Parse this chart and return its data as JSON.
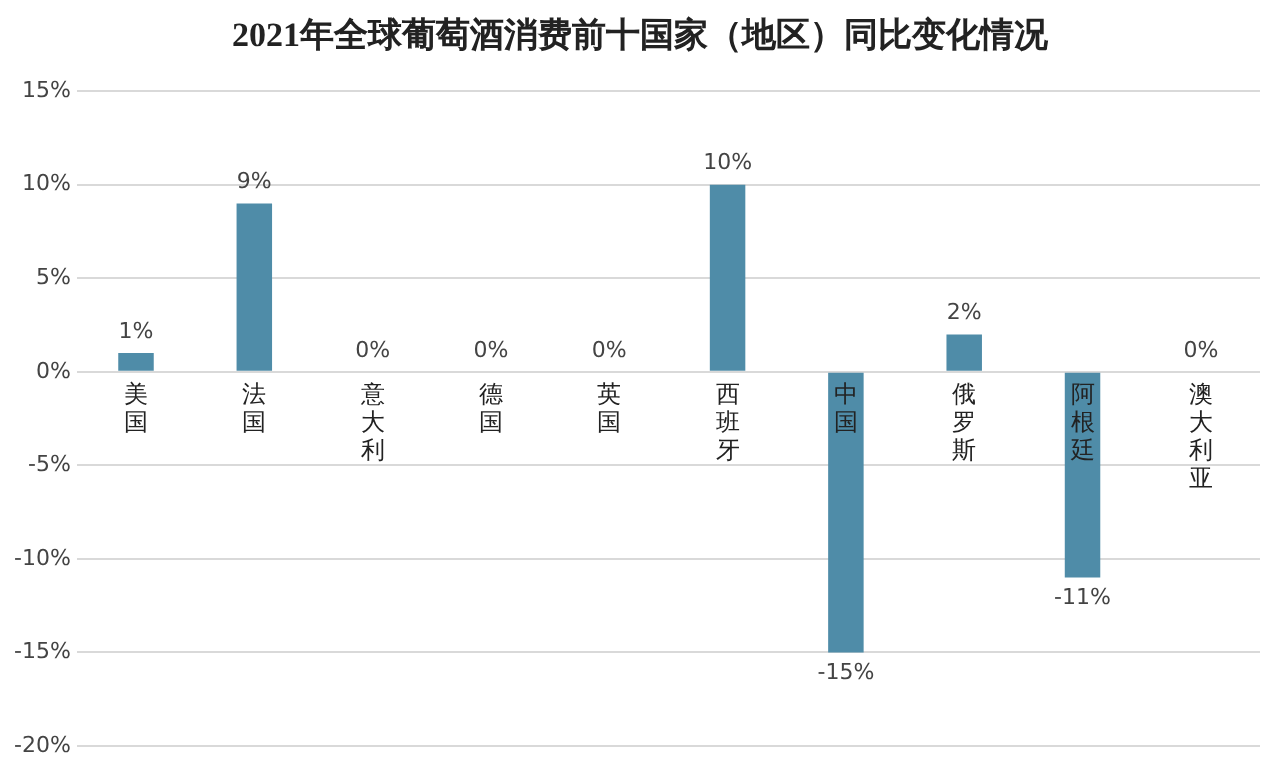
{
  "chart_data": {
    "type": "bar",
    "title": "2021年全球葡萄酒消费前十国家（地区）同比变化情况",
    "categories": [
      "美国",
      "法国",
      "意大利",
      "德国",
      "英国",
      "西班牙",
      "中国",
      "俄罗斯",
      "阿根廷",
      "澳大利亚"
    ],
    "values": [
      1,
      9,
      0,
      0,
      0,
      10,
      -15,
      2,
      -11,
      0
    ],
    "value_labels": [
      "1%",
      "9%",
      "0%",
      "0%",
      "0%",
      "10%",
      "-15%",
      "2%",
      "-11%",
      "0%"
    ],
    "color": "#4f8ca8",
    "ylim": [
      -20,
      15
    ],
    "yticks": [
      {
        "value": -20,
        "label": "-20%"
      },
      {
        "value": -15,
        "label": "-15%"
      },
      {
        "value": -10,
        "label": "-10%"
      },
      {
        "value": -5,
        "label": "-5%"
      },
      {
        "value": 0,
        "label": "0%"
      },
      {
        "value": 5,
        "label": "5%"
      },
      {
        "value": 10,
        "label": "10%"
      },
      {
        "value": 15,
        "label": "15%"
      }
    ],
    "grid": "y",
    "legend": false
  }
}
